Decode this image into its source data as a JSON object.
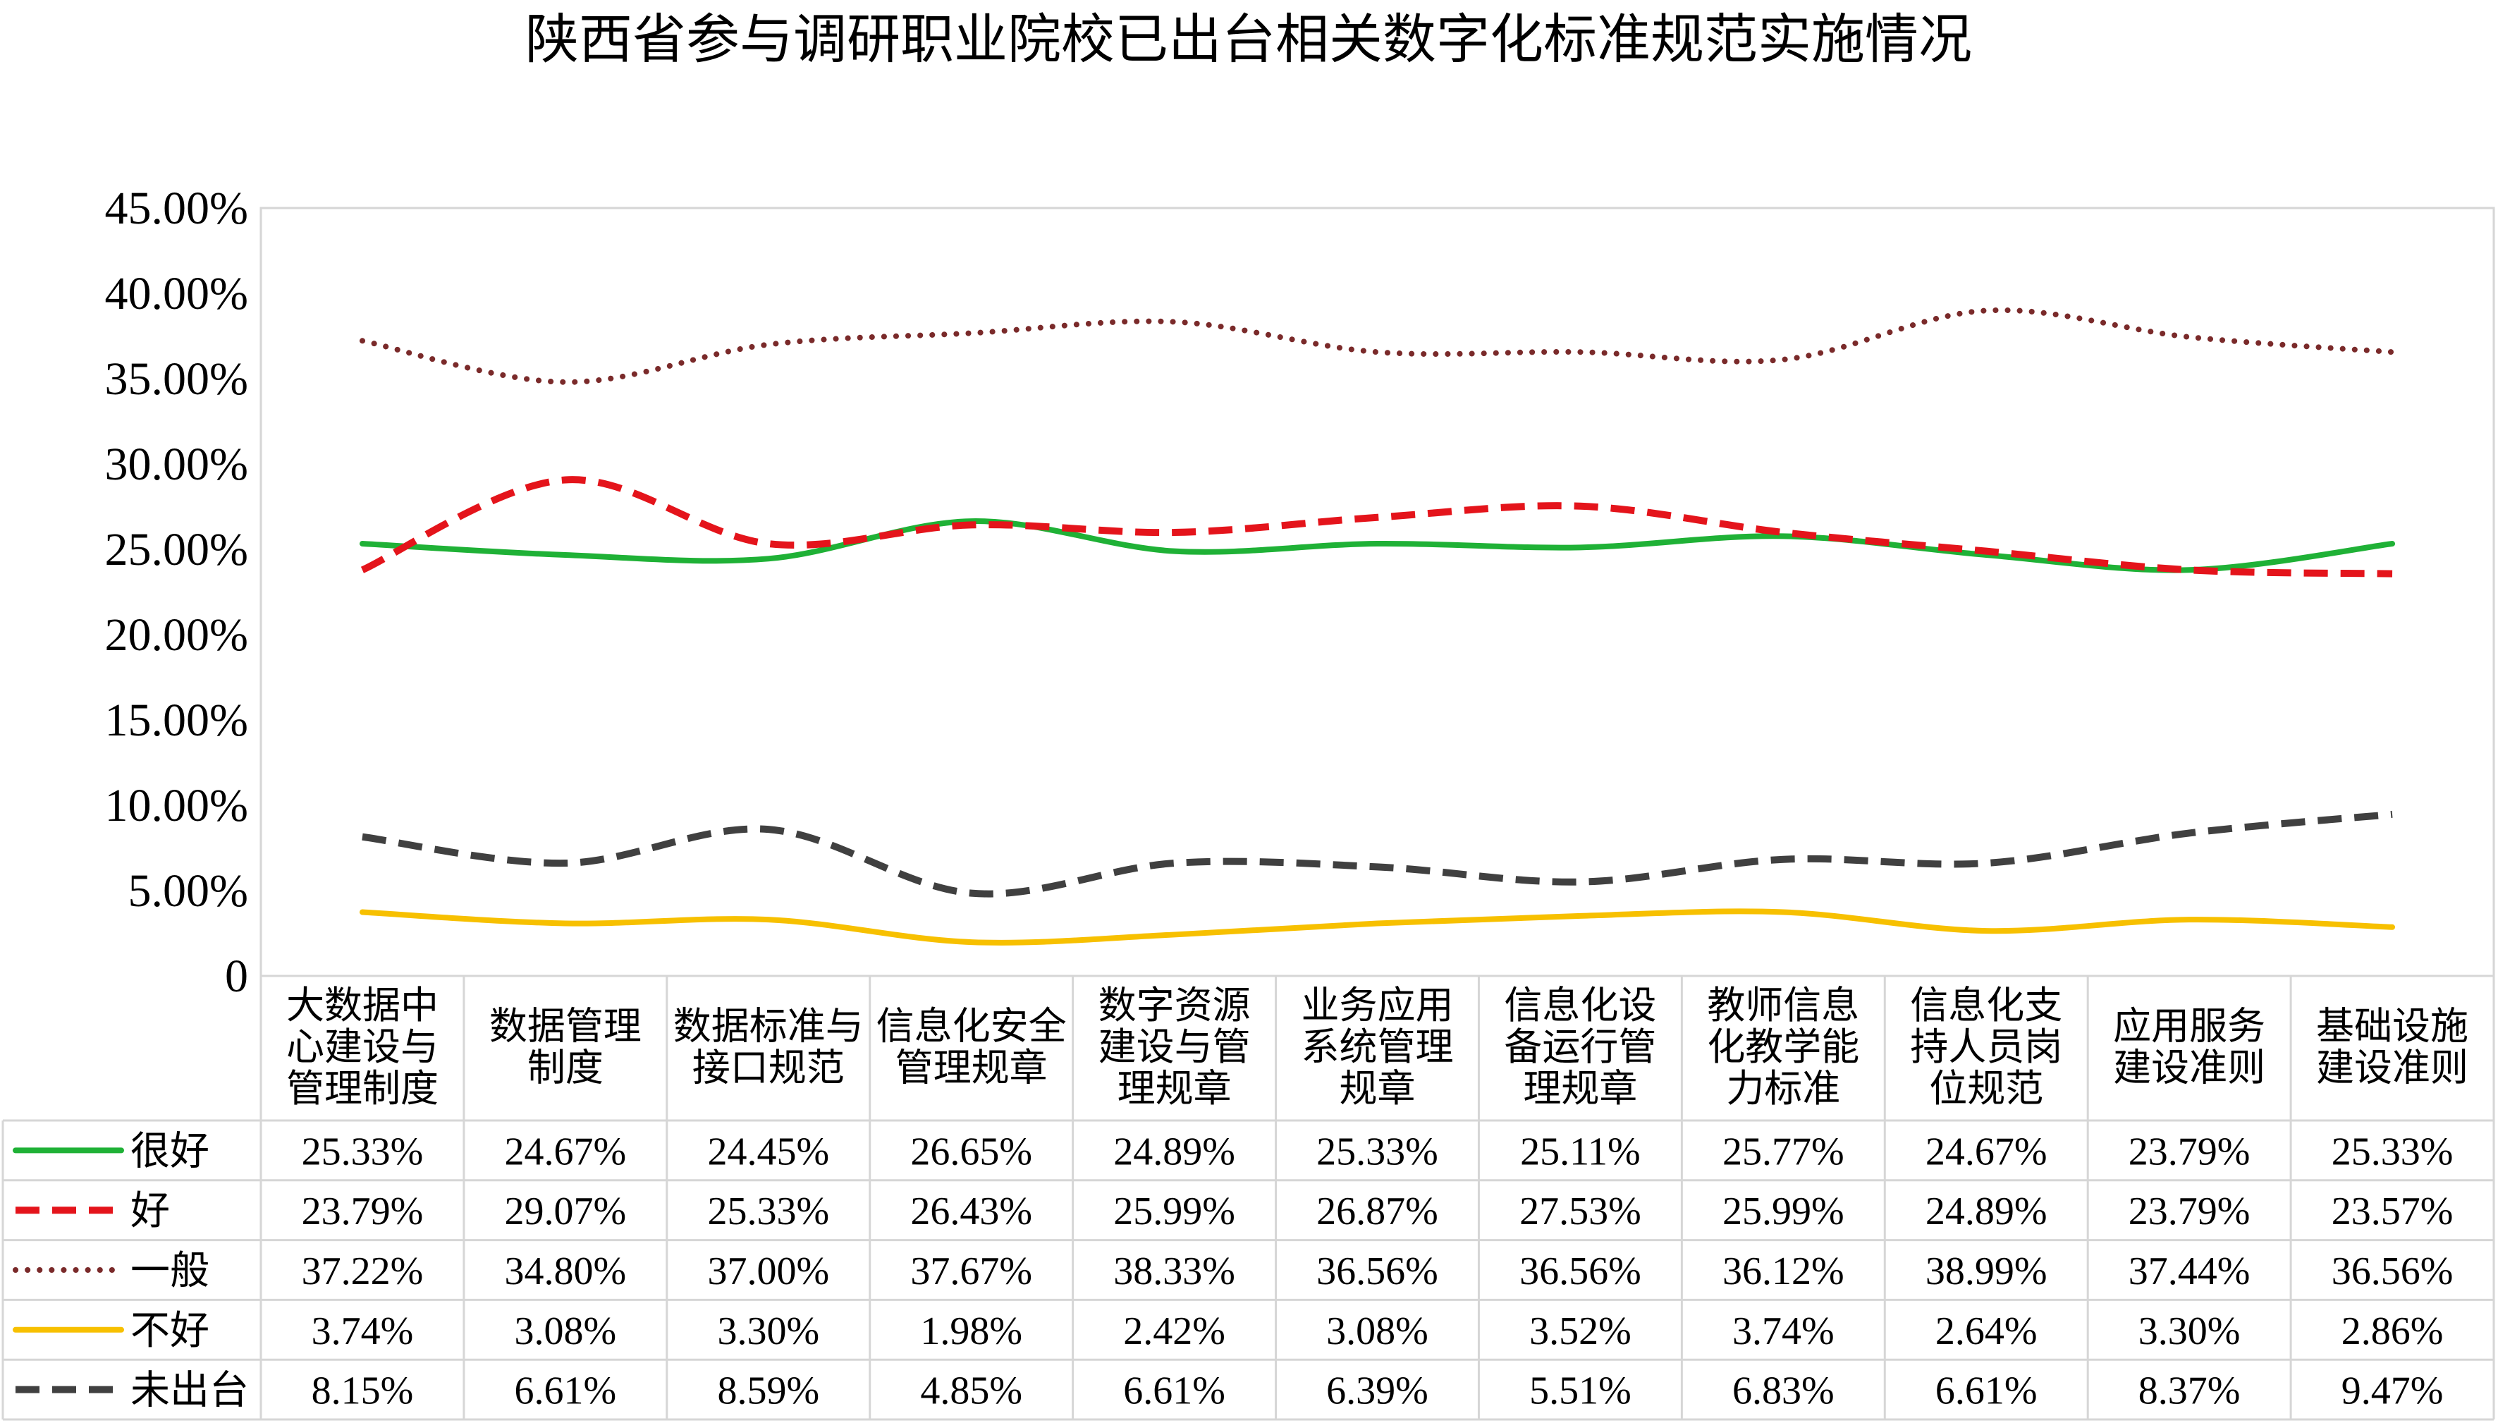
{
  "chart_data": {
    "type": "line",
    "title": "陕西省参与调研职业院校已出台相关数字化标准规范实施情况",
    "categories": [
      [
        "大数据中",
        "心建设与",
        "管理制度"
      ],
      [
        "数据管理",
        "制度"
      ],
      [
        "数据标准与",
        "接口规范"
      ],
      [
        "信息化安全",
        "管理规章"
      ],
      [
        "数字资源",
        "建设与管",
        "理规章"
      ],
      [
        "业务应用",
        "系统管理",
        "规章"
      ],
      [
        "信息化设",
        "备运行管",
        "理规章"
      ],
      [
        "教师信息",
        "化教学能",
        "力标准"
      ],
      [
        "信息化支",
        "持人员岗",
        "位规范"
      ],
      [
        "应用服务",
        "建设准则"
      ],
      [
        "基础设施",
        "建设准则"
      ]
    ],
    "ylim": [
      0,
      45
    ],
    "yticks": [
      0,
      5,
      10,
      15,
      20,
      25,
      30,
      35,
      40,
      45
    ],
    "ytick_labels": [
      "0",
      "5.00%",
      "10.00%",
      "15.00%",
      "20.00%",
      "25.00%",
      "30.00%",
      "35.00%",
      "40.00%",
      "45.00%"
    ],
    "grid": false,
    "series": [
      {
        "name": "很好",
        "color": "#1fb136",
        "style": "solid",
        "values": [
          25.33,
          24.67,
          24.45,
          26.65,
          24.89,
          25.33,
          25.11,
          25.77,
          24.67,
          23.79,
          25.33
        ],
        "labels": [
          "25.33%",
          "24.67%",
          "24.45%",
          "26.65%",
          "24.89%",
          "25.33%",
          "25.11%",
          "25.77%",
          "24.67%",
          "23.79%",
          "25.33%"
        ]
      },
      {
        "name": "好",
        "color": "#e4141b",
        "style": "dash",
        "values": [
          23.79,
          29.07,
          25.33,
          26.43,
          25.99,
          26.87,
          27.53,
          25.99,
          24.89,
          23.79,
          23.57
        ],
        "labels": [
          "23.79%",
          "29.07%",
          "25.33%",
          "26.43%",
          "25.99%",
          "26.87%",
          "27.53%",
          "25.99%",
          "24.89%",
          "23.79%",
          "23.57%"
        ]
      },
      {
        "name": "一般",
        "color": "#7a2a2a",
        "style": "dot",
        "values": [
          37.22,
          34.8,
          37.0,
          37.67,
          38.33,
          36.56,
          36.56,
          36.12,
          38.99,
          37.44,
          36.56
        ],
        "labels": [
          "37.22%",
          "34.80%",
          "37.00%",
          "37.67%",
          "38.33%",
          "36.56%",
          "36.56%",
          "36.12%",
          "38.99%",
          "37.44%",
          "36.56%"
        ]
      },
      {
        "name": "不好",
        "color": "#f7c000",
        "style": "solid",
        "values": [
          3.74,
          3.08,
          3.3,
          1.98,
          2.42,
          3.08,
          3.52,
          3.74,
          2.64,
          3.3,
          2.86
        ],
        "labels": [
          "3.74%",
          "3.08%",
          "3.30%",
          "1.98%",
          "2.42%",
          "3.08%",
          "3.52%",
          "3.74%",
          "2.64%",
          "3.30%",
          "2.86%"
        ]
      },
      {
        "name": "未出台",
        "color": "#404040",
        "style": "dash",
        "values": [
          8.15,
          6.61,
          8.59,
          4.85,
          6.61,
          6.39,
          5.51,
          6.83,
          6.61,
          8.37,
          9.47
        ],
        "labels": [
          "8.15%",
          "6.61%",
          "8.59%",
          "4.85%",
          "6.61%",
          "6.39%",
          "5.51%",
          "6.83%",
          "6.61%",
          "8.37%",
          "9.47%"
        ]
      }
    ]
  }
}
